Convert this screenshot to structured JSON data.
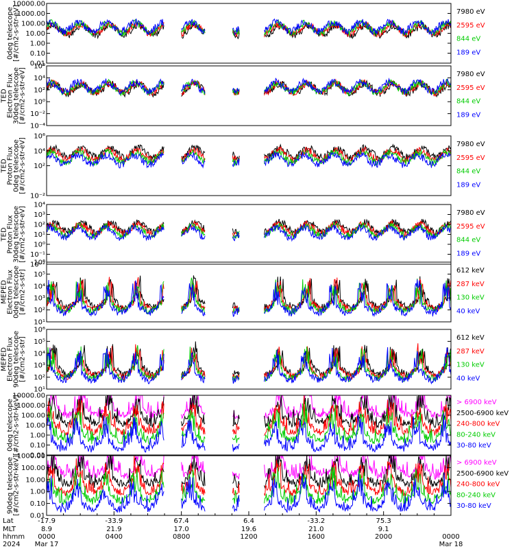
{
  "chart_data": {
    "type": "multi-panel-line",
    "x_axis": {
      "rows": [
        {
          "label": "Lat",
          "values": [
            "-17.9",
            "-33.9",
            "67.4",
            "6.4",
            "-33.2",
            "75.3",
            ""
          ]
        },
        {
          "label": "MLT",
          "values": [
            "8.9",
            "21.9",
            "17.0",
            "19.6",
            "21.0",
            "9.1",
            ""
          ]
        },
        {
          "label": "hhmm",
          "values": [
            "0000",
            "0400",
            "0800",
            "1200",
            "1600",
            "2000",
            "0000"
          ]
        },
        {
          "label": "2024",
          "values": [
            "Mar 17",
            "",
            "",
            "",
            "",
            "",
            "Mar 18"
          ]
        }
      ],
      "range_hours": [
        0,
        24
      ]
    },
    "panels": [
      {
        "ylabel": [
          "0deg telescope",
          "[#/cm2-s-str-eV]"
        ],
        "scale": "log",
        "ylim": [
          0.01,
          10000
        ],
        "tick_labels": [
          "0.01",
          "0.10",
          "1.00",
          "10.00",
          "100.00",
          "1000.00",
          "10000.00"
        ],
        "legend": [
          {
            "name": "7980 eV",
            "color": "#000000"
          },
          {
            "name": "2595 eV",
            "color": "#ff0000"
          },
          {
            "name": "844 eV",
            "color": "#00cc00"
          },
          {
            "name": "189 eV",
            "color": "#0000ff"
          }
        ]
      },
      {
        "ylabel": [
          "TED",
          "Electron Flux",
          "30deg telescope",
          "[#/cm2-s-str-eV]"
        ],
        "scale": "log",
        "ylim": [
          0.0001,
          1000000
        ],
        "tick_labels": [
          "10⁻⁴",
          "10⁻²",
          "10⁰",
          "10²",
          "10⁴",
          "10⁶"
        ],
        "legend": [
          {
            "name": "7980 eV",
            "color": "#000000"
          },
          {
            "name": "2595 eV",
            "color": "#ff0000"
          },
          {
            "name": "844 eV",
            "color": "#00cc00"
          },
          {
            "name": "189 eV",
            "color": "#0000ff"
          }
        ]
      },
      {
        "ylabel": [
          "TED",
          "Proton Flux",
          "0deg telescope",
          "[#/cm2-s-str-eV]"
        ],
        "scale": "log",
        "ylim": [
          0.01,
          1000000
        ],
        "tick_labels": [
          "10⁻²",
          "10²",
          "10⁴",
          "10⁶"
        ],
        "legend": [
          {
            "name": "7980 eV",
            "color": "#000000"
          },
          {
            "name": "2595 eV",
            "color": "#ff0000"
          },
          {
            "name": "844 eV",
            "color": "#00cc00"
          },
          {
            "name": "189 eV",
            "color": "#0000ff"
          }
        ]
      },
      {
        "ylabel": [
          "TED",
          "Proton Flux",
          "30deg telescope",
          "[#/cm2-s-str-eV]"
        ],
        "scale": "log",
        "ylim": [
          0.01,
          10000
        ],
        "tick_labels": [
          "10⁻²",
          "10⁻¹",
          "10⁰",
          "10¹",
          "10²",
          "10³",
          "10⁴"
        ],
        "legend": [
          {
            "name": "7980 eV",
            "color": "#000000"
          },
          {
            "name": "2595 eV",
            "color": "#ff0000"
          },
          {
            "name": "844 eV",
            "color": "#00cc00"
          },
          {
            "name": "189 eV",
            "color": "#0000ff"
          }
        ]
      },
      {
        "ylabel": [
          "MEPED",
          "Electron Flux",
          "0deg telescope",
          "[#/cm2-s-str]"
        ],
        "scale": "log",
        "ylim": [
          10,
          1000000
        ],
        "tick_labels": [
          "10¹",
          "10²",
          "10³",
          "10⁴",
          "10⁵",
          "10⁶"
        ],
        "legend": [
          {
            "name": "612 keV",
            "color": "#000000"
          },
          {
            "name": "287 keV",
            "color": "#ff0000"
          },
          {
            "name": "130 keV",
            "color": "#00cc00"
          },
          {
            "name": "40 keV",
            "color": "#0000ff"
          }
        ]
      },
      {
        "ylabel": [
          "MEPED",
          "Electron Flux",
          "90deg telescope",
          "[#/cm2-s-str]"
        ],
        "scale": "log",
        "ylim": [
          10,
          1000000
        ],
        "tick_labels": [
          "10¹",
          "10²",
          "10³",
          "10⁴",
          "10⁵",
          "10⁶"
        ],
        "legend": [
          {
            "name": "612 keV",
            "color": "#000000"
          },
          {
            "name": "287 keV",
            "color": "#ff0000"
          },
          {
            "name": "130 keV",
            "color": "#00cc00"
          },
          {
            "name": "40 keV",
            "color": "#0000ff"
          }
        ]
      },
      {
        "ylabel": [
          "0deg telescope",
          "[#/cm2-s-str-keV]"
        ],
        "scale": "log",
        "ylim": [
          0.01,
          10000
        ],
        "tick_labels": [
          "0.01",
          "0.10",
          "1.00",
          "10.00",
          "100.00",
          "1000.00",
          "10000.00"
        ],
        "legend": [
          {
            "name": "> 6900 keV",
            "color": "#ff00ff"
          },
          {
            "name": "2500-6900 keV",
            "color": "#000000"
          },
          {
            "name": "240-800 keV",
            "color": "#ff0000"
          },
          {
            "name": "80-240 keV",
            "color": "#00cc00"
          },
          {
            "name": "30-80 keV",
            "color": "#0000ff"
          }
        ]
      },
      {
        "ylabel": [
          "90deg telescope",
          "[#/cm2-s-str-keV]"
        ],
        "scale": "log",
        "ylim": [
          0.01,
          1000
        ],
        "tick_labels": [
          "0.01",
          "0.10",
          "1.00",
          "10.00",
          "100.00",
          "1000.00"
        ],
        "legend": [
          {
            "name": "> 6900 keV",
            "color": "#ff00ff"
          },
          {
            "name": "2500-6900 keV",
            "color": "#000000"
          },
          {
            "name": "240-800 keV",
            "color": "#ff0000"
          },
          {
            "name": "80-240 keV",
            "color": "#00cc00"
          },
          {
            "name": "30-80 keV",
            "color": "#0000ff"
          }
        ]
      }
    ],
    "data_gaps_hours": [
      [
        7.0,
        8.0
      ],
      [
        9.4,
        11.0
      ],
      [
        11.45,
        12.9
      ]
    ],
    "grid": false
  }
}
